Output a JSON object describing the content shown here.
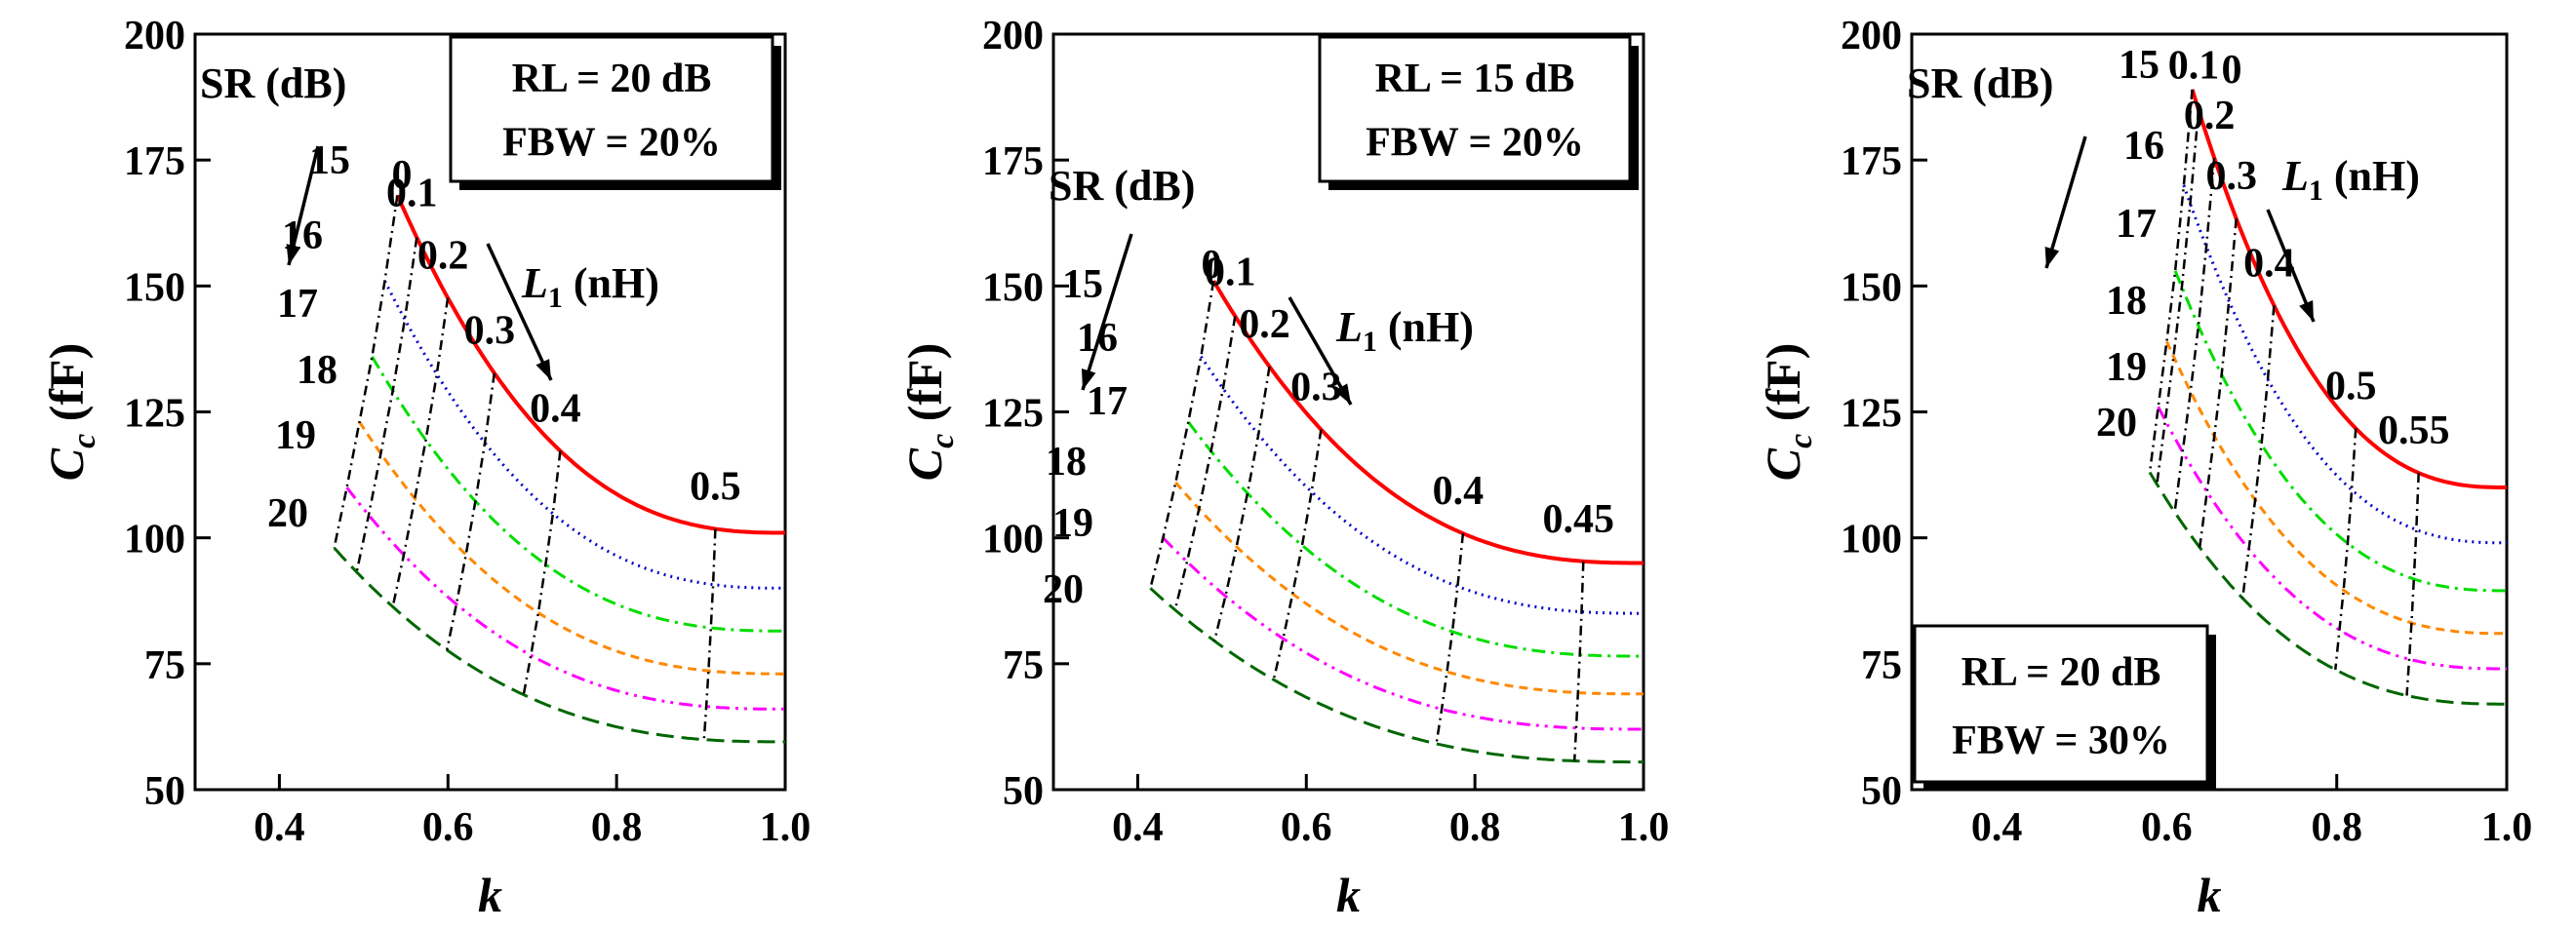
{
  "chart_data": [
    {
      "type": "line",
      "xlabel": "k",
      "ylabel_main": "C",
      "ylabel_sub": "c",
      "ylabel_unit": " (fF)",
      "xlim": [
        0.3,
        1.0
      ],
      "ylim": [
        50,
        200
      ],
      "xticks": [
        "0.4",
        "0.6",
        "0.8",
        "1.0"
      ],
      "yticks": [
        "50",
        "75",
        "100",
        "125",
        "150",
        "175",
        "200"
      ],
      "box": [
        "RL = 20 dB",
        "FBW = 20%"
      ],
      "sr_title": "SR (dB)",
      "l1_title": "L",
      "l1_sub": "1",
      "l1_unit": " (nH)",
      "series": [
        {
          "name": "15",
          "color": "#ff0000",
          "dash": "",
          "k0": 0.54,
          "cmin": 101,
          "ctop": 168,
          "p": 2.6
        },
        {
          "name": "16",
          "color": "#0000cc",
          "dash": "2,5",
          "k0": 0.525,
          "cmin": 90,
          "ctop": 151,
          "p": 2.6
        },
        {
          "name": "17",
          "color": "#00dd00",
          "dash": "14,6,3,6",
          "k0": 0.51,
          "cmin": 81.5,
          "ctop": 136,
          "p": 2.6
        },
        {
          "name": "18",
          "color": "#ff8800",
          "dash": "9,6",
          "k0": 0.495,
          "cmin": 73,
          "ctop": 123,
          "p": 2.6
        },
        {
          "name": "19",
          "color": "#ff00ff",
          "dash": "14,6,3,6,3,6",
          "k0": 0.48,
          "cmin": 66,
          "ctop": 110,
          "p": 2.6
        },
        {
          "name": "20",
          "color": "#006600",
          "dash": "18,8",
          "k0": 0.465,
          "cmin": 59.5,
          "ctop": 98,
          "p": 2.6
        }
      ],
      "l1_lines": [
        {
          "label": "0.1",
          "t": 0.05
        },
        {
          "label": "0.2",
          "t": 0.13
        },
        {
          "label": "0.3",
          "t": 0.25
        },
        {
          "label": "0.4",
          "t": 0.42
        },
        {
          "label": "0.5",
          "t": 0.82
        }
      ],
      "l1_zero_label": "0",
      "sr_labels": [
        "15",
        "16",
        "17",
        "18",
        "19",
        "20"
      ]
    },
    {
      "type": "line",
      "xlabel": "k",
      "ylabel_main": "C",
      "ylabel_sub": "c",
      "ylabel_unit": " (fF)",
      "xlim": [
        0.3,
        1.0
      ],
      "ylim": [
        50,
        200
      ],
      "xticks": [
        "0.4",
        "0.6",
        "0.8",
        "1.0"
      ],
      "yticks": [
        "50",
        "75",
        "100",
        "125",
        "150",
        "175",
        "200"
      ],
      "box": [
        "RL = 15 dB",
        "FBW = 20%"
      ],
      "sr_title": "SR (dB)",
      "l1_title": "L",
      "l1_sub": "1",
      "l1_unit": " (nH)",
      "series": [
        {
          "name": "15",
          "color": "#ff0000",
          "dash": "",
          "k0": 0.49,
          "cmin": 95,
          "ctop": 151,
          "p": 2.6
        },
        {
          "name": "16",
          "color": "#0000cc",
          "dash": "2,5",
          "k0": 0.475,
          "cmin": 85,
          "ctop": 136,
          "p": 2.6
        },
        {
          "name": "17",
          "color": "#00dd00",
          "dash": "14,6,3,6",
          "k0": 0.46,
          "cmin": 76.5,
          "ctop": 123,
          "p": 2.6
        },
        {
          "name": "18",
          "color": "#ff8800",
          "dash": "9,6",
          "k0": 0.445,
          "cmin": 69,
          "ctop": 111,
          "p": 2.6
        },
        {
          "name": "19",
          "color": "#ff00ff",
          "dash": "14,6,3,6,3,6",
          "k0": 0.43,
          "cmin": 62,
          "ctop": 100,
          "p": 2.6
        },
        {
          "name": "20",
          "color": "#006600",
          "dash": "18,8",
          "k0": 0.415,
          "cmin": 55.5,
          "ctop": 90,
          "p": 2.6
        }
      ],
      "l1_lines": [
        {
          "label": "0.1",
          "t": 0.05
        },
        {
          "label": "0.2",
          "t": 0.13
        },
        {
          "label": "0.3",
          "t": 0.25
        },
        {
          "label": "0.4",
          "t": 0.58
        },
        {
          "label": "0.45",
          "t": 0.86
        }
      ],
      "l1_zero_label": "0",
      "sr_labels": [
        "15",
        "16",
        "17",
        "18",
        "19",
        "20"
      ]
    },
    {
      "type": "line",
      "xlabel": "k",
      "ylabel_main": "C",
      "ylabel_sub": "c",
      "ylabel_unit": " (fF)",
      "xlim": [
        0.3,
        1.0
      ],
      "ylim": [
        50,
        200
      ],
      "xticks": [
        "0.4",
        "0.6",
        "0.8",
        "1.0"
      ],
      "yticks": [
        "50",
        "75",
        "100",
        "125",
        "150",
        "175",
        "200"
      ],
      "box": [
        "RL = 20 dB",
        "FBW = 30%"
      ],
      "sr_title": "SR (dB)",
      "l1_title": "L",
      "l1_sub": "1",
      "l1_unit": " (nH)",
      "series": [
        {
          "name": "15",
          "color": "#ff0000",
          "dash": "",
          "k0": 0.63,
          "cmin": 110,
          "ctop": 189,
          "p": 2.6
        },
        {
          "name": "16",
          "color": "#0000cc",
          "dash": "2,5",
          "k0": 0.62,
          "cmin": 99,
          "ctop": 170,
          "p": 2.6
        },
        {
          "name": "17",
          "color": "#00dd00",
          "dash": "14,6,3,6",
          "k0": 0.61,
          "cmin": 89.5,
          "ctop": 153,
          "p": 2.6
        },
        {
          "name": "18",
          "color": "#ff8800",
          "dash": "9,6",
          "k0": 0.6,
          "cmin": 81,
          "ctop": 139,
          "p": 2.6
        },
        {
          "name": "19",
          "color": "#ff00ff",
          "dash": "14,6,3,6,3,6",
          "k0": 0.59,
          "cmin": 74,
          "ctop": 126,
          "p": 2.6
        },
        {
          "name": "20",
          "color": "#006600",
          "dash": "18,8",
          "k0": 0.58,
          "cmin": 67,
          "ctop": 113,
          "p": 2.6
        }
      ],
      "l1_lines": [
        {
          "label": "0.1",
          "t": 0.02
        },
        {
          "label": "0.2",
          "t": 0.07
        },
        {
          "label": "0.3",
          "t": 0.14
        },
        {
          "label": "0.4",
          "t": 0.26
        },
        {
          "label": "0.5",
          "t": 0.52
        },
        {
          "label": "0.55",
          "t": 0.72
        }
      ],
      "l1_zero_label": "0",
      "sr_labels": [
        "15",
        "16",
        "17",
        "18",
        "19",
        "20"
      ]
    }
  ]
}
